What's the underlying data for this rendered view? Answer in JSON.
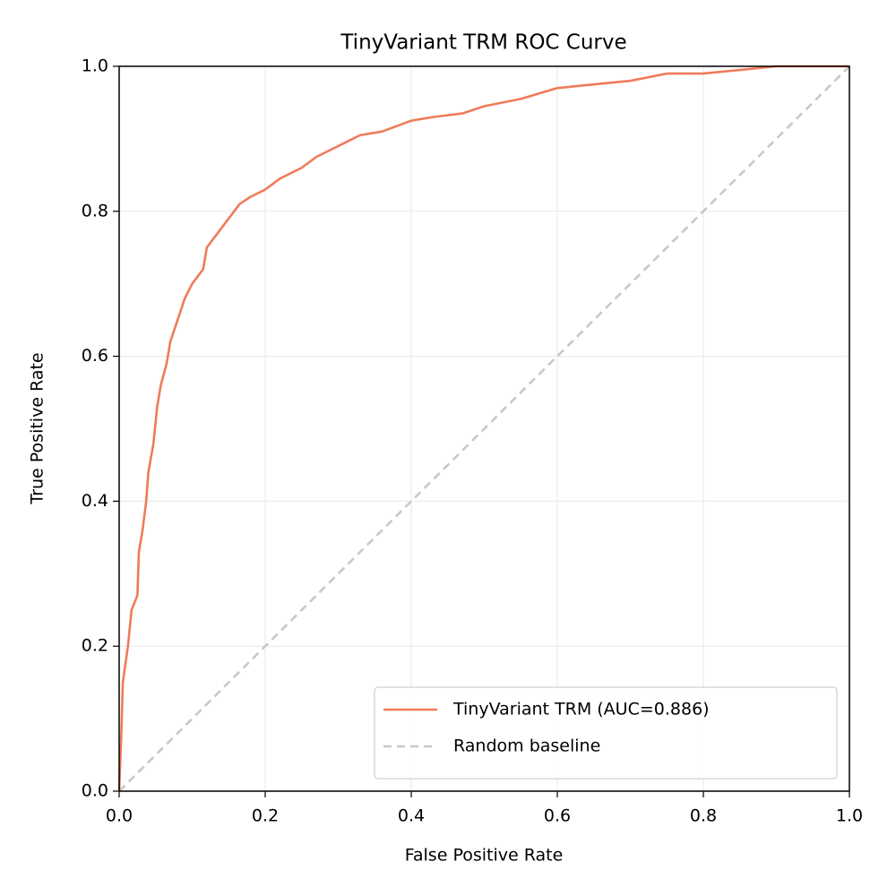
{
  "chart_data": {
    "type": "line",
    "title": "TinyVariant TRM ROC Curve",
    "xlabel": "False Positive Rate",
    "ylabel": "True Positive Rate",
    "xlim": [
      0,
      1
    ],
    "ylim": [
      0,
      1
    ],
    "xticks": [
      {
        "value": 0,
        "label": "0.0"
      },
      0.2,
      0.4,
      0.6,
      0.8,
      {
        "value": 1,
        "label": "1.0"
      }
    ],
    "yticks": [
      {
        "value": 0,
        "label": "0.0"
      },
      0.2,
      0.4,
      0.6,
      0.8,
      {
        "value": 1,
        "label": "1.0"
      }
    ],
    "grid": true,
    "legend": "lower right",
    "series": [
      {
        "name": "TinyVariant TRM (AUC=0.886)",
        "color": "#ef7b59",
        "linestyle": "solid",
        "x": [
          0,
          0.003,
          0.005,
          0.012,
          0.017,
          0.025,
          0.027,
          0.032,
          0.037,
          0.04,
          0.047,
          0.052,
          0.057,
          0.065,
          0.07,
          0.08,
          0.09,
          0.1,
          0.115,
          0.12,
          0.135,
          0.15,
          0.165,
          0.18,
          0.2,
          0.22,
          0.25,
          0.27,
          0.3,
          0.33,
          0.36,
          0.4,
          0.43,
          0.47,
          0.5,
          0.55,
          0.6,
          0.65,
          0.7,
          0.75,
          0.8,
          0.85,
          0.9,
          1
        ],
        "values": [
          0,
          0.08,
          0.15,
          0.2,
          0.25,
          0.27,
          0.33,
          0.36,
          0.4,
          0.44,
          0.48,
          0.53,
          0.56,
          0.59,
          0.62,
          0.65,
          0.68,
          0.7,
          0.72,
          0.75,
          0.77,
          0.79,
          0.81,
          0.82,
          0.83,
          0.845,
          0.86,
          0.875,
          0.89,
          0.905,
          0.91,
          0.925,
          0.93,
          0.935,
          0.945,
          0.955,
          0.97,
          0.975,
          0.98,
          0.99,
          0.99,
          0.995,
          1,
          1
        ]
      },
      {
        "name": "Random baseline",
        "color": "#c8c8c8",
        "linestyle": "dashed",
        "x": [
          0,
          1
        ],
        "values": [
          0,
          1
        ]
      }
    ]
  }
}
